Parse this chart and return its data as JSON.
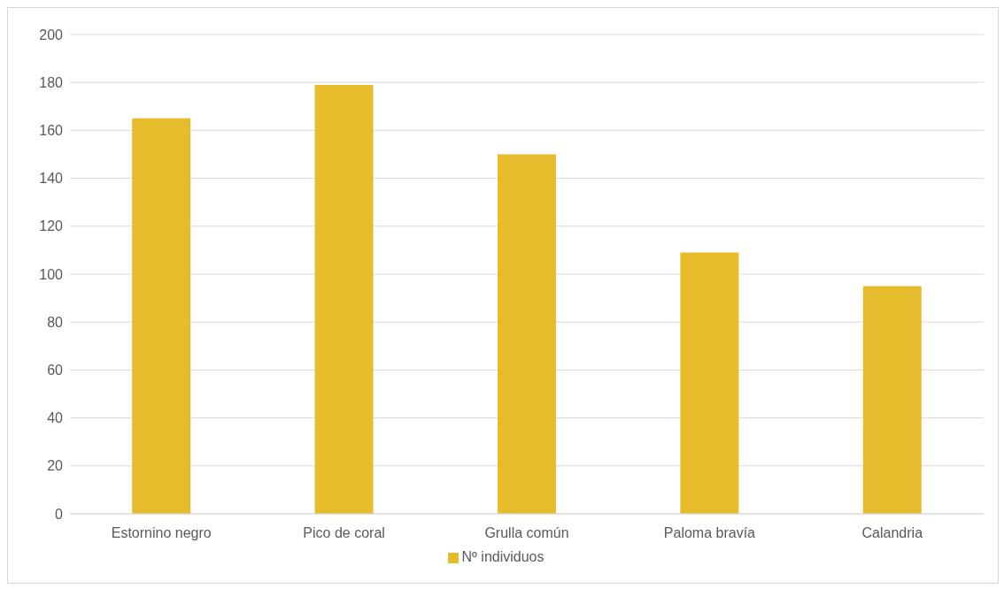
{
  "chart_data": {
    "type": "bar",
    "categories": [
      "Estornino negro",
      "Pico de coral",
      "Grulla común",
      "Paloma bravía",
      "Calandria"
    ],
    "series": [
      {
        "name": "Nº individuos",
        "color": "#e6bb2c",
        "values": [
          165,
          179,
          150,
          109,
          95
        ]
      }
    ],
    "ylim": [
      0,
      200
    ],
    "yticks": [
      0,
      20,
      40,
      60,
      80,
      100,
      120,
      140,
      160,
      180,
      200
    ],
    "grid": "y",
    "legend": "bottom"
  }
}
